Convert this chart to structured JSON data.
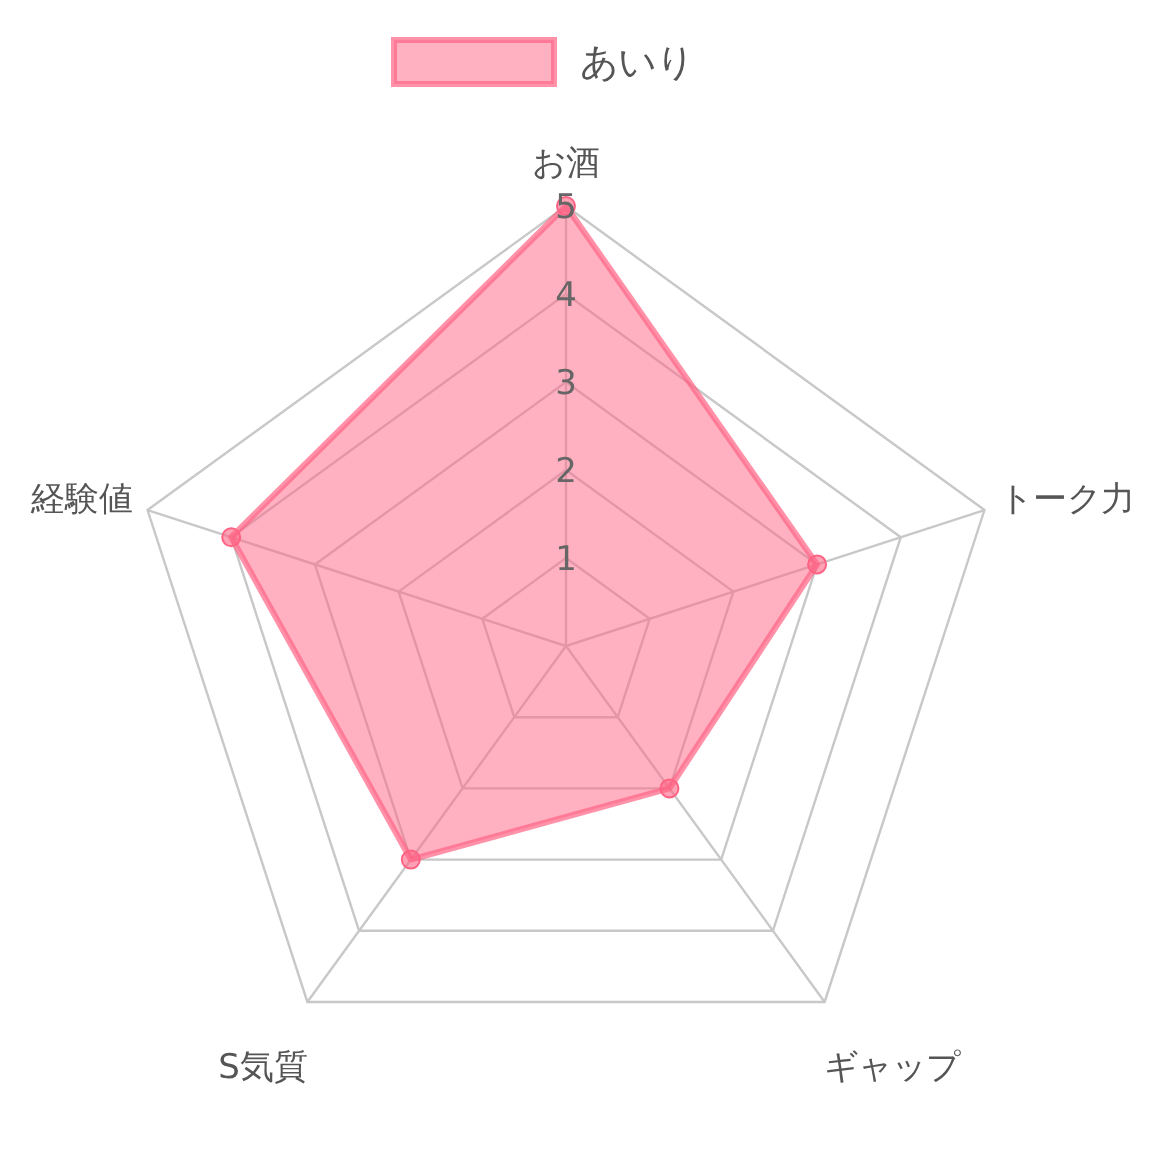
{
  "chart_data": {
    "type": "radar",
    "categories": [
      "お酒",
      "トーク力",
      "ギャップ",
      "S気質",
      "経験値"
    ],
    "series": [
      {
        "name": "あいり",
        "color": "#ff6384",
        "values": [
          5,
          3,
          2,
          3,
          4
        ]
      }
    ],
    "ylim": [
      0,
      5
    ],
    "yticks": [
      1,
      2,
      3,
      4,
      5
    ],
    "grid": true,
    "legend": "top",
    "marker": "circle"
  }
}
